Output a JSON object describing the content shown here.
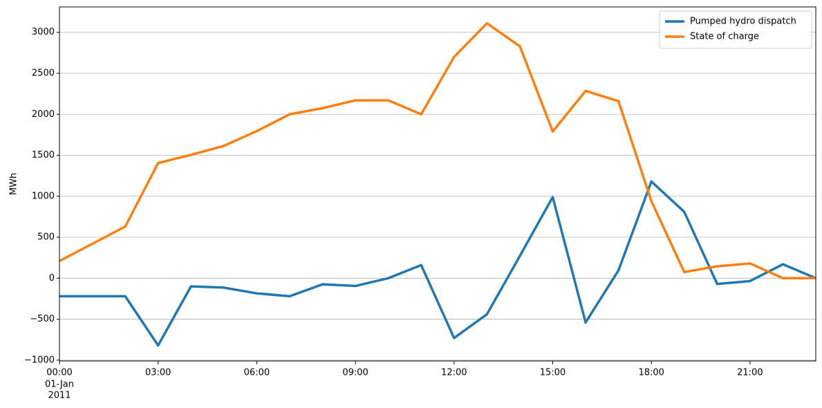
{
  "chart_data": {
    "type": "line",
    "y_label": "MWh",
    "x": [
      0,
      1,
      2,
      3,
      4,
      5,
      6,
      7,
      8,
      9,
      10,
      11,
      12,
      13,
      14,
      15,
      16,
      17,
      18,
      19,
      20,
      21,
      22,
      23
    ],
    "x_date_labels": [
      "01-Jan",
      "2011"
    ],
    "series": [
      {
        "name": "Pumped hydro dispatch",
        "color": "#1f77b4",
        "values": [
          -220,
          -220,
          -220,
          -820,
          -100,
          -115,
          -185,
          -220,
          -75,
          -95,
          0,
          160,
          -730,
          -440,
          270,
          990,
          -540,
          95,
          1180,
          810,
          -70,
          -35,
          170,
          0
        ]
      },
      {
        "name": "State of charge",
        "color": "#ff7f0e",
        "values": [
          210,
          420,
          630,
          1405,
          1505,
          1615,
          1795,
          2000,
          2075,
          2170,
          2170,
          2000,
          2700,
          3110,
          2830,
          1790,
          2285,
          2160,
          940,
          75,
          145,
          180,
          0,
          0
        ]
      }
    ],
    "xlim": [
      0,
      23
    ],
    "xticks": [
      {
        "value": 0,
        "label": "00:00"
      },
      {
        "value": 3,
        "label": "03:00"
      },
      {
        "value": 6,
        "label": "06:00"
      },
      {
        "value": 9,
        "label": "09:00"
      },
      {
        "value": 12,
        "label": "12:00"
      },
      {
        "value": 15,
        "label": "15:00"
      },
      {
        "value": 18,
        "label": "18:00"
      },
      {
        "value": 21,
        "label": "21:00"
      }
    ],
    "ylim": [
      -1010,
      3310
    ],
    "yticks": [
      {
        "value": -1000,
        "label": "−1000"
      },
      {
        "value": -500,
        "label": "−500"
      },
      0,
      500,
      1000,
      1500,
      2000,
      2500,
      3000
    ],
    "grid": true,
    "legend": "upper-right"
  }
}
